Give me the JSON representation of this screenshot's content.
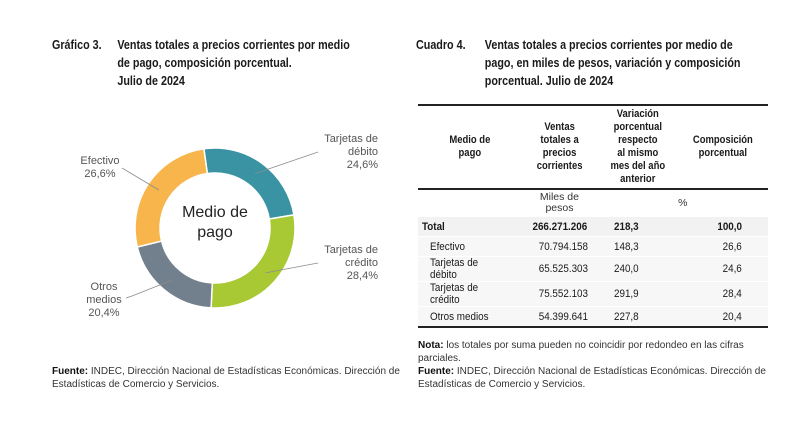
{
  "left": {
    "title_number": "Gráfico 3.",
    "title_lines": [
      "Ventas totales a precios corrientes por medio",
      "de pago, composición porcentual.",
      "Julio de 2024"
    ],
    "source_label": "Fuente:",
    "source_text": " INDEC, Dirección Nacional de Estadísticas Económicas. Dirección de Estadísticas de Comercio y Servicios."
  },
  "chart_data": {
    "type": "pie",
    "variant": "donut",
    "title": "Ventas totales a precios corrientes por medio de pago, composición porcentual. Julio de 2024",
    "center_label": [
      "Medio de",
      "pago"
    ],
    "unit": "%",
    "start": "top, clockwise",
    "slices": [
      {
        "name": "Tarjetas de débito",
        "label_lines": [
          "Tarjetas de",
          "débito"
        ],
        "value": 24.6,
        "value_label": "24,6%",
        "color": "#3a93a3"
      },
      {
        "name": "Tarjetas de crédito",
        "label_lines": [
          "Tarjetas de",
          "crédito"
        ],
        "value": 28.4,
        "value_label": "28,4%",
        "color": "#a9c934"
      },
      {
        "name": "Otros medios",
        "label_lines": [
          "Otros",
          "medios"
        ],
        "value": 20.4,
        "value_label": "20,4%",
        "color": "#727f8d"
      },
      {
        "name": "Efectivo",
        "label_lines": [
          "Efectivo"
        ],
        "value": 26.6,
        "value_label": "26,6%",
        "color": "#f7b54c"
      }
    ]
  },
  "right": {
    "title_number": "Cuadro 4.",
    "title_lines": [
      "Ventas totales a precios corrientes por medio de",
      "pago, en miles de pesos, variación y composición",
      "porcentual. Julio de 2024"
    ],
    "table": {
      "headers": [
        [
          "Medio de",
          "pago"
        ],
        [
          "Ventas",
          "totales a",
          "precios",
          "corrientes"
        ],
        [
          "Variación",
          "porcentual",
          "respecto",
          "al mismo",
          "mes del año",
          "anterior"
        ],
        [
          "Composición",
          "porcentual"
        ]
      ],
      "units": {
        "col2": [
          "Miles de",
          "pesos"
        ],
        "col34": "%"
      },
      "total": {
        "label": "Total",
        "ventas": "266.271.206",
        "variacion": "218,3",
        "composicion": "100,0"
      },
      "rows": [
        {
          "label": "Efectivo",
          "ventas": "70.794.158",
          "variacion": "148,3",
          "composicion": "26,6"
        },
        {
          "label": "Tarjetas de débito",
          "ventas": "65.525.303",
          "variacion": "240,0",
          "composicion": "24,6"
        },
        {
          "label": "Tarjetas de crédito",
          "ventas": "75.552.103",
          "variacion": "291,9",
          "composicion": "28,4"
        },
        {
          "label": "Otros medios",
          "ventas": "54.399.641",
          "variacion": "227,8",
          "composicion": "20,4"
        }
      ]
    },
    "note_label": "Nota:",
    "note_text": " los totales por suma pueden no coincidir por redondeo en las cifras parciales.",
    "source_label": "Fuente:",
    "source_text": " INDEC, Dirección Nacional de Estadísticas Económicas. Dirección de Estadísticas de Comercio y Servicios."
  }
}
